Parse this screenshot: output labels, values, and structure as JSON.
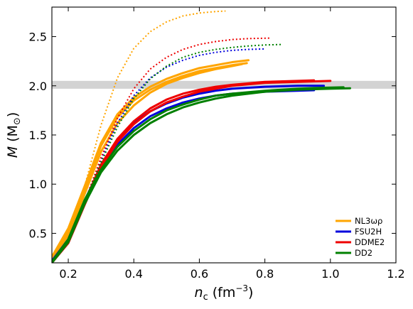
{
  "chart_data": {
    "type": "line",
    "xlabel_symbol": "n",
    "xlabel_sub": "c",
    "xlabel_unit_pre": "(fm",
    "xlabel_unit_exp": "−3",
    "xlabel_unit_post": ")",
    "ylabel_symbol": "M",
    "ylabel_unit": "(M",
    "ylabel_unit_sub": "⊙",
    "ylabel_unit_post": ")",
    "xlim": [
      0.15,
      1.2
    ],
    "ylim": [
      0.2,
      2.8
    ],
    "xticks": [
      0.2,
      0.4,
      0.6,
      0.8,
      1.0,
      1.2
    ],
    "xtick_labels": [
      "0.2",
      "0.4",
      "0.6",
      "0.8",
      "1.0",
      "1.2"
    ],
    "yticks": [
      0.5,
      1.0,
      1.5,
      2.0,
      2.5
    ],
    "ytick_labels": [
      "0.5",
      "1.0",
      "1.5",
      "2.0",
      "2.5"
    ],
    "band": {
      "y0": 1.97,
      "y1": 2.05,
      "color": "#d3d3d3"
    },
    "legend_position": "lower-right",
    "series": [
      {
        "name": "NL3ωρ",
        "color": "#FFA500",
        "in_legend": true,
        "style": "solid",
        "curves": [
          [
            [
              0.15,
              0.26
            ],
            [
              0.2,
              0.55
            ],
            [
              0.25,
              0.98
            ],
            [
              0.3,
              1.42
            ],
            [
              0.35,
              1.71
            ],
            [
              0.4,
              1.88
            ],
            [
              0.45,
              1.99
            ],
            [
              0.5,
              2.07
            ],
            [
              0.55,
              2.13
            ],
            [
              0.6,
              2.18
            ],
            [
              0.65,
              2.21
            ],
            [
              0.7,
              2.24
            ],
            [
              0.75,
              2.26
            ]
          ],
          [
            [
              0.15,
              0.24
            ],
            [
              0.2,
              0.52
            ],
            [
              0.25,
              0.95
            ],
            [
              0.3,
              1.39
            ],
            [
              0.35,
              1.68
            ],
            [
              0.4,
              1.85
            ],
            [
              0.45,
              1.96
            ],
            [
              0.5,
              2.04
            ],
            [
              0.55,
              2.1
            ],
            [
              0.6,
              2.15
            ],
            [
              0.65,
              2.18
            ],
            [
              0.7,
              2.21
            ],
            [
              0.745,
              2.23
            ]
          ],
          [
            [
              0.15,
              0.23
            ],
            [
              0.2,
              0.48
            ],
            [
              0.25,
              0.9
            ],
            [
              0.3,
              1.33
            ],
            [
              0.35,
              1.62
            ],
            [
              0.4,
              1.8
            ],
            [
              0.45,
              1.93
            ],
            [
              0.5,
              2.02
            ],
            [
              0.55,
              2.08
            ],
            [
              0.6,
              2.13
            ],
            [
              0.65,
              2.17
            ],
            [
              0.7,
              2.2
            ],
            [
              0.73,
              2.22
            ]
          ]
        ]
      },
      {
        "name": "",
        "color": "#FFA500",
        "in_legend": false,
        "style": "dotted",
        "curves": [
          [
            [
              0.25,
              0.98
            ],
            [
              0.3,
              1.6
            ],
            [
              0.35,
              2.08
            ],
            [
              0.4,
              2.38
            ],
            [
              0.45,
              2.55
            ],
            [
              0.5,
              2.65
            ],
            [
              0.55,
              2.71
            ],
            [
              0.6,
              2.74
            ],
            [
              0.65,
              2.755
            ],
            [
              0.68,
              2.76
            ]
          ]
        ]
      },
      {
        "name": "FSU2H",
        "color": "#0000DD",
        "in_legend": true,
        "style": "solid",
        "curves": [
          [
            [
              0.15,
              0.22
            ],
            [
              0.2,
              0.42
            ],
            [
              0.25,
              0.8
            ],
            [
              0.3,
              1.15
            ],
            [
              0.35,
              1.4
            ],
            [
              0.4,
              1.57
            ],
            [
              0.45,
              1.69
            ],
            [
              0.5,
              1.77
            ],
            [
              0.55,
              1.83
            ],
            [
              0.6,
              1.87
            ],
            [
              0.65,
              1.9
            ],
            [
              0.7,
              1.92
            ],
            [
              0.8,
              1.94
            ],
            [
              0.9,
              1.95
            ],
            [
              0.95,
              1.955
            ]
          ],
          [
            [
              0.15,
              0.22
            ],
            [
              0.2,
              0.44
            ],
            [
              0.25,
              0.83
            ],
            [
              0.3,
              1.19
            ],
            [
              0.35,
              1.45
            ],
            [
              0.4,
              1.62
            ],
            [
              0.45,
              1.74
            ],
            [
              0.5,
              1.82
            ],
            [
              0.55,
              1.88
            ],
            [
              0.6,
              1.92
            ],
            [
              0.65,
              1.95
            ],
            [
              0.7,
              1.97
            ],
            [
              0.8,
              1.99
            ],
            [
              0.9,
              2.0
            ],
            [
              0.98,
              2.0
            ]
          ]
        ]
      },
      {
        "name": "",
        "color": "#0000DD",
        "in_legend": false,
        "style": "dotted",
        "curves": [
          [
            [
              0.25,
              0.82
            ],
            [
              0.3,
              1.25
            ],
            [
              0.35,
              1.62
            ],
            [
              0.4,
              1.9
            ],
            [
              0.45,
              2.08
            ],
            [
              0.5,
              2.19
            ],
            [
              0.55,
              2.26
            ],
            [
              0.6,
              2.31
            ],
            [
              0.65,
              2.34
            ],
            [
              0.7,
              2.36
            ],
            [
              0.75,
              2.37
            ],
            [
              0.8,
              2.375
            ]
          ]
        ]
      },
      {
        "name": "DDME2",
        "color": "#EE0000",
        "in_legend": true,
        "style": "solid",
        "curves": [
          [
            [
              0.15,
              0.2
            ],
            [
              0.2,
              0.42
            ],
            [
              0.25,
              0.82
            ],
            [
              0.3,
              1.2
            ],
            [
              0.35,
              1.46
            ],
            [
              0.4,
              1.64
            ],
            [
              0.45,
              1.77
            ],
            [
              0.5,
              1.86
            ],
            [
              0.55,
              1.92
            ],
            [
              0.6,
              1.96
            ],
            [
              0.65,
              1.99
            ],
            [
              0.7,
              2.01
            ],
            [
              0.8,
              2.04
            ],
            [
              0.9,
              2.05
            ],
            [
              0.95,
              2.055
            ]
          ],
          [
            [
              0.15,
              0.2
            ],
            [
              0.2,
              0.4
            ],
            [
              0.25,
              0.79
            ],
            [
              0.3,
              1.17
            ],
            [
              0.35,
              1.43
            ],
            [
              0.4,
              1.61
            ],
            [
              0.45,
              1.74
            ],
            [
              0.5,
              1.83
            ],
            [
              0.55,
              1.89
            ],
            [
              0.6,
              1.94
            ],
            [
              0.65,
              1.97
            ],
            [
              0.7,
              2.0
            ],
            [
              0.8,
              2.03
            ],
            [
              0.9,
              2.04
            ],
            [
              1.0,
              2.05
            ]
          ]
        ]
      },
      {
        "name": "",
        "color": "#EE0000",
        "in_legend": false,
        "style": "dotted",
        "curves": [
          [
            [
              0.25,
              0.82
            ],
            [
              0.3,
              1.27
            ],
            [
              0.35,
              1.67
            ],
            [
              0.4,
              1.97
            ],
            [
              0.45,
              2.17
            ],
            [
              0.5,
              2.29
            ],
            [
              0.55,
              2.37
            ],
            [
              0.6,
              2.42
            ],
            [
              0.65,
              2.45
            ],
            [
              0.7,
              2.47
            ],
            [
              0.75,
              2.48
            ],
            [
              0.82,
              2.485
            ]
          ]
        ]
      },
      {
        "name": "DD2",
        "color": "#008000",
        "in_legend": true,
        "style": "solid",
        "curves": [
          [
            [
              0.15,
              0.2
            ],
            [
              0.2,
              0.41
            ],
            [
              0.25,
              0.8
            ],
            [
              0.3,
              1.12
            ],
            [
              0.35,
              1.34
            ],
            [
              0.4,
              1.5
            ],
            [
              0.45,
              1.62
            ],
            [
              0.5,
              1.71
            ],
            [
              0.55,
              1.78
            ],
            [
              0.6,
              1.83
            ],
            [
              0.65,
              1.87
            ],
            [
              0.7,
              1.9
            ],
            [
              0.8,
              1.94
            ],
            [
              0.9,
              1.96
            ],
            [
              1.0,
              1.97
            ],
            [
              1.06,
              1.975
            ]
          ],
          [
            [
              0.15,
              0.21
            ],
            [
              0.2,
              0.44
            ],
            [
              0.25,
              0.84
            ],
            [
              0.3,
              1.15
            ],
            [
              0.35,
              1.38
            ],
            [
              0.4,
              1.54
            ],
            [
              0.45,
              1.66
            ],
            [
              0.5,
              1.75
            ],
            [
              0.55,
              1.81
            ],
            [
              0.6,
              1.86
            ],
            [
              0.65,
              1.9
            ],
            [
              0.7,
              1.92
            ],
            [
              0.8,
              1.95
            ],
            [
              0.9,
              1.97
            ],
            [
              0.98,
              1.98
            ],
            [
              1.04,
              1.985
            ]
          ]
        ]
      },
      {
        "name": "",
        "color": "#008000",
        "in_legend": false,
        "style": "dotted",
        "curves": [
          [
            [
              0.25,
              0.82
            ],
            [
              0.3,
              1.22
            ],
            [
              0.35,
              1.58
            ],
            [
              0.4,
              1.87
            ],
            [
              0.45,
              2.07
            ],
            [
              0.5,
              2.2
            ],
            [
              0.55,
              2.29
            ],
            [
              0.6,
              2.34
            ],
            [
              0.65,
              2.37
            ],
            [
              0.7,
              2.39
            ],
            [
              0.75,
              2.405
            ],
            [
              0.8,
              2.415
            ],
            [
              0.85,
              2.42
            ]
          ]
        ]
      }
    ]
  }
}
